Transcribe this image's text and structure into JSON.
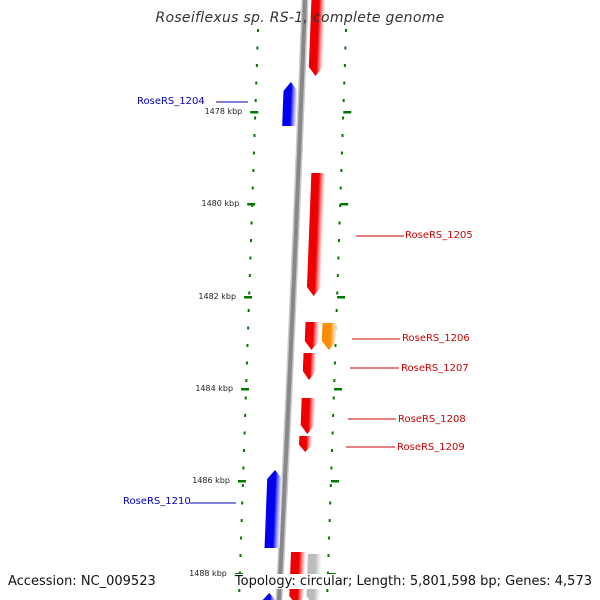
{
  "title": "Roseiflexus sp. RS-1, complete genome",
  "footer": {
    "accession": "Accession: NC_009523",
    "topology": "Topology: circular; Length: 5,801,598 bp; Genes: 4,573"
  },
  "colors": {
    "forward_gene": "#ee0000",
    "reverse_gene": "#0000ee",
    "highlight_gene": "#ff8c00",
    "other_gene": "#bbbbbb",
    "backbone": "#888888",
    "tick": "#007700",
    "forward_label": "#cc0000",
    "reverse_label": "#0000bb"
  },
  "ticks": [
    {
      "label": "1478 kbp"
    },
    {
      "label": "1480 kbp"
    },
    {
      "label": "1482 kbp"
    },
    {
      "label": "1484 kbp"
    },
    {
      "label": "1486 kbp"
    },
    {
      "label": "1488 kbp"
    }
  ],
  "genes": [
    {
      "strand": "forward",
      "color": "forward_gene"
    },
    {
      "strand": "reverse",
      "color": "reverse_gene",
      "label": "RoseRS_1204"
    },
    {
      "strand": "forward",
      "color": "forward_gene",
      "label": "RoseRS_1205"
    },
    {
      "strand": "forward",
      "color": "forward_gene",
      "label": "RoseRS_1206"
    },
    {
      "strand": "forward",
      "color": "highlight_gene"
    },
    {
      "strand": "forward",
      "color": "forward_gene",
      "label": "RoseRS_1207"
    },
    {
      "strand": "forward",
      "color": "forward_gene",
      "label": "RoseRS_1208"
    },
    {
      "strand": "forward",
      "color": "forward_gene",
      "label": "RoseRS_1209"
    },
    {
      "strand": "reverse",
      "color": "reverse_gene",
      "label": "RoseRS_1210"
    },
    {
      "strand": "forward",
      "color": "forward_gene"
    },
    {
      "strand": "forward",
      "color": "other_gene"
    },
    {
      "strand": "reverse",
      "color": "reverse_gene"
    }
  ]
}
